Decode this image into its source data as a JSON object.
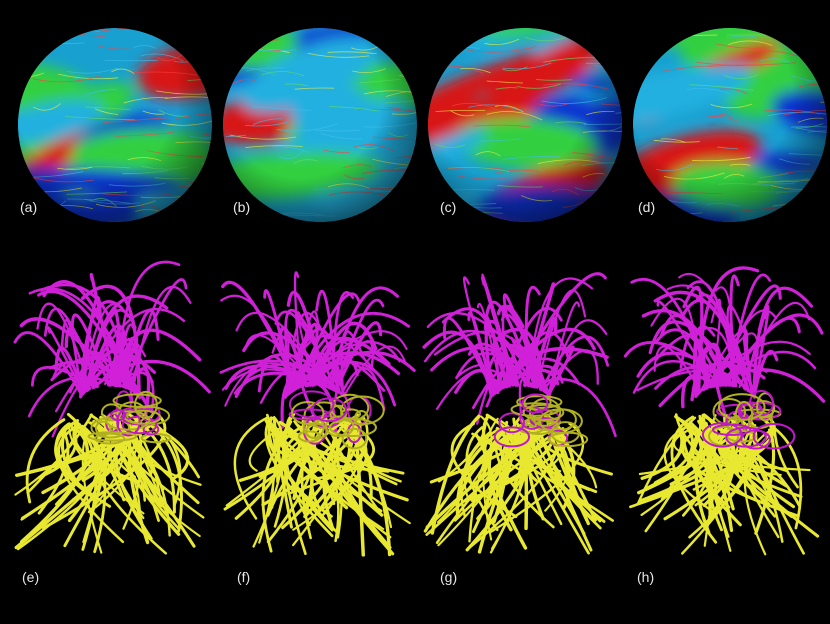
{
  "labels": [
    "(a)",
    "(b)",
    "(c)",
    "(d)",
    "(e)",
    "(f)",
    "(g)",
    "(h)"
  ]
}
